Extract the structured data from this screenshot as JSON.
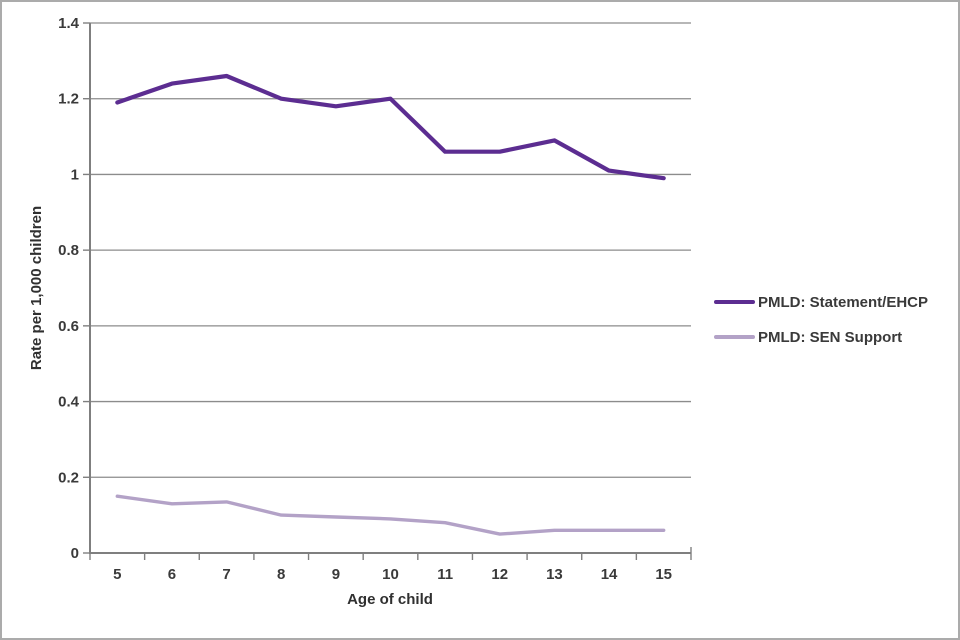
{
  "chart_data": {
    "type": "line",
    "title": "",
    "xlabel": "Age of child",
    "ylabel": "Rate per 1,000 children",
    "x": [
      5,
      6,
      7,
      8,
      9,
      10,
      11,
      12,
      13,
      14,
      15
    ],
    "series": [
      {
        "name": "PMLD: Statement/EHCP",
        "color": "#5c2d91",
        "values": [
          1.19,
          1.24,
          1.26,
          1.2,
          1.18,
          1.2,
          1.06,
          1.06,
          1.09,
          1.01,
          0.99
        ]
      },
      {
        "name": "PMLD: SEN Support",
        "color": "#b3a2c7",
        "values": [
          0.15,
          0.13,
          0.135,
          0.1,
          0.095,
          0.09,
          0.08,
          0.05,
          0.06,
          0.06,
          0.06
        ]
      }
    ],
    "ylim": [
      0,
      1.4
    ],
    "ytick_step": 0.2,
    "ytick_labels": [
      "0",
      "0.2",
      "0.4",
      "0.6",
      "0.8",
      "1",
      "1.2",
      "1.4"
    ],
    "xtick_labels": [
      "5",
      "6",
      "7",
      "8",
      "9",
      "10",
      "11",
      "12",
      "13",
      "14",
      "15"
    ],
    "grid": "horizontal",
    "legend_position": "right"
  },
  "colors": {
    "gridline": "#8c8c8c",
    "axis": "#7f7f7f",
    "text": "#3a3a3a",
    "background": "#ffffff"
  }
}
